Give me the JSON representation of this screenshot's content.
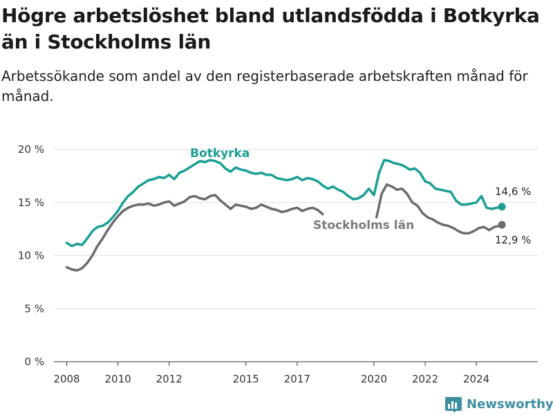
{
  "header": {
    "title": "Högre arbetslöshet bland utlandsfödda i Botkyrka än i Stockholms län",
    "subtitle": "Arbetssökande som andel av den registerbaserade arbetskraften månad för månad."
  },
  "branding": {
    "name": "Newsworthy",
    "icon": "bar-chart-logo-icon",
    "color": "#3d8fa0"
  },
  "chart_data": {
    "type": "line",
    "title": "Högre arbetslöshet bland utlandsfödda i Botkyrka än i Stockholms län",
    "subtitle": "Arbetssökande som andel av den registerbaserade arbetskraften månad för månad.",
    "xlabel": "",
    "ylabel": "",
    "xlim": [
      2007.5,
      2026.4
    ],
    "ylim": [
      0,
      20
    ],
    "y_ticks": [
      0,
      5,
      10,
      15,
      20
    ],
    "y_tick_labels": [
      "0 %",
      "5 %",
      "10 %",
      "15 %",
      "20 %"
    ],
    "x_ticks": [
      2008,
      2010,
      2012,
      2015,
      2017,
      2020,
      2022,
      2024
    ],
    "x_tick_labels": [
      "2008",
      "2010",
      "2012",
      "2015",
      "2017",
      "2020",
      "2022",
      "2024"
    ],
    "grid": "horizontal",
    "legend": "inline labels",
    "series": [
      {
        "name": "Botkyrka",
        "color": "#1a9e93",
        "end_label": "14,6 %",
        "end_value": 14.6,
        "points": [
          [
            2008.0,
            11.2
          ],
          [
            2008.2,
            10.9
          ],
          [
            2008.4,
            11.1
          ],
          [
            2008.6,
            11.0
          ],
          [
            2008.8,
            11.6
          ],
          [
            2009.0,
            12.3
          ],
          [
            2009.2,
            12.7
          ],
          [
            2009.4,
            12.8
          ],
          [
            2009.6,
            13.1
          ],
          [
            2009.8,
            13.6
          ],
          [
            2010.0,
            14.2
          ],
          [
            2010.2,
            15.0
          ],
          [
            2010.4,
            15.6
          ],
          [
            2010.6,
            16.0
          ],
          [
            2010.8,
            16.5
          ],
          [
            2011.0,
            16.8
          ],
          [
            2011.2,
            17.1
          ],
          [
            2011.4,
            17.2
          ],
          [
            2011.6,
            17.4
          ],
          [
            2011.8,
            17.3
          ],
          [
            2012.0,
            17.6
          ],
          [
            2012.2,
            17.2
          ],
          [
            2012.4,
            17.8
          ],
          [
            2012.6,
            18.0
          ],
          [
            2012.8,
            18.3
          ],
          [
            2013.0,
            18.6
          ],
          [
            2013.2,
            18.9
          ],
          [
            2013.4,
            18.8
          ],
          [
            2013.6,
            19.0
          ],
          [
            2013.8,
            18.9
          ],
          [
            2014.0,
            18.7
          ],
          [
            2014.2,
            18.2
          ],
          [
            2014.4,
            17.9
          ],
          [
            2014.6,
            18.3
          ],
          [
            2014.8,
            18.1
          ],
          [
            2015.0,
            18.0
          ],
          [
            2015.2,
            17.8
          ],
          [
            2015.4,
            17.7
          ],
          [
            2015.6,
            17.8
          ],
          [
            2015.8,
            17.6
          ],
          [
            2016.0,
            17.6
          ],
          [
            2016.2,
            17.3
          ],
          [
            2016.4,
            17.2
          ],
          [
            2016.6,
            17.1
          ],
          [
            2016.8,
            17.2
          ],
          [
            2017.0,
            17.4
          ],
          [
            2017.2,
            17.1
          ],
          [
            2017.4,
            17.3
          ],
          [
            2017.6,
            17.2
          ],
          [
            2017.8,
            17.0
          ],
          [
            2018.0,
            16.6
          ],
          [
            2018.2,
            16.3
          ],
          [
            2018.4,
            16.5
          ],
          [
            2018.6,
            16.2
          ],
          [
            2018.8,
            16.0
          ],
          [
            2019.0,
            15.6
          ],
          [
            2019.2,
            15.3
          ],
          [
            2019.4,
            15.4
          ],
          [
            2019.6,
            15.7
          ],
          [
            2019.8,
            16.3
          ],
          [
            2020.0,
            15.7
          ],
          [
            2020.2,
            17.8
          ],
          [
            2020.4,
            19.0
          ],
          [
            2020.6,
            18.9
          ],
          [
            2020.8,
            18.7
          ],
          [
            2021.0,
            18.6
          ],
          [
            2021.2,
            18.4
          ],
          [
            2021.4,
            18.1
          ],
          [
            2021.6,
            18.2
          ],
          [
            2021.8,
            17.8
          ],
          [
            2022.0,
            17.0
          ],
          [
            2022.2,
            16.8
          ],
          [
            2022.4,
            16.3
          ],
          [
            2022.6,
            16.2
          ],
          [
            2022.8,
            16.1
          ],
          [
            2023.0,
            16.0
          ],
          [
            2023.2,
            15.2
          ],
          [
            2023.4,
            14.8
          ],
          [
            2023.6,
            14.8
          ],
          [
            2023.8,
            14.9
          ],
          [
            2024.0,
            15.0
          ],
          [
            2024.2,
            15.6
          ],
          [
            2024.4,
            14.5
          ],
          [
            2024.6,
            14.4
          ],
          [
            2024.8,
            14.5
          ],
          [
            2025.0,
            14.6
          ]
        ]
      },
      {
        "name": "Stockholms län",
        "color": "#6b6b6b",
        "end_label": "12,9 %",
        "end_value": 12.9,
        "points": [
          [
            2008.0,
            8.9
          ],
          [
            2008.2,
            8.7
          ],
          [
            2008.4,
            8.6
          ],
          [
            2008.6,
            8.8
          ],
          [
            2008.8,
            9.3
          ],
          [
            2009.0,
            10.0
          ],
          [
            2009.2,
            10.9
          ],
          [
            2009.4,
            11.6
          ],
          [
            2009.6,
            12.4
          ],
          [
            2009.8,
            13.1
          ],
          [
            2010.0,
            13.7
          ],
          [
            2010.2,
            14.2
          ],
          [
            2010.4,
            14.5
          ],
          [
            2010.6,
            14.7
          ],
          [
            2010.8,
            14.8
          ],
          [
            2011.0,
            14.8
          ],
          [
            2011.2,
            14.9
          ],
          [
            2011.4,
            14.7
          ],
          [
            2011.6,
            14.8
          ],
          [
            2011.8,
            15.0
          ],
          [
            2012.0,
            15.1
          ],
          [
            2012.2,
            14.7
          ],
          [
            2012.4,
            14.9
          ],
          [
            2012.6,
            15.1
          ],
          [
            2012.8,
            15.5
          ],
          [
            2013.0,
            15.6
          ],
          [
            2013.2,
            15.4
          ],
          [
            2013.4,
            15.3
          ],
          [
            2013.6,
            15.6
          ],
          [
            2013.8,
            15.7
          ],
          [
            2014.0,
            15.2
          ],
          [
            2014.2,
            14.8
          ],
          [
            2014.4,
            14.4
          ],
          [
            2014.6,
            14.8
          ],
          [
            2014.8,
            14.7
          ],
          [
            2015.0,
            14.6
          ],
          [
            2015.2,
            14.4
          ],
          [
            2015.4,
            14.5
          ],
          [
            2015.6,
            14.8
          ],
          [
            2015.8,
            14.6
          ],
          [
            2016.0,
            14.4
          ],
          [
            2016.2,
            14.3
          ],
          [
            2016.4,
            14.1
          ],
          [
            2016.6,
            14.2
          ],
          [
            2016.8,
            14.4
          ],
          [
            2017.0,
            14.5
          ],
          [
            2017.2,
            14.2
          ],
          [
            2017.4,
            14.4
          ],
          [
            2017.6,
            14.5
          ],
          [
            2017.8,
            14.3
          ],
          [
            2018.0,
            13.9
          ],
          null,
          [
            2020.1,
            13.6
          ],
          [
            2020.3,
            15.8
          ],
          [
            2020.5,
            16.7
          ],
          [
            2020.7,
            16.5
          ],
          [
            2020.9,
            16.2
          ],
          [
            2021.1,
            16.3
          ],
          [
            2021.3,
            15.8
          ],
          [
            2021.5,
            15.0
          ],
          [
            2021.7,
            14.7
          ],
          [
            2021.9,
            14.0
          ],
          [
            2022.1,
            13.6
          ],
          [
            2022.3,
            13.4
          ],
          [
            2022.5,
            13.1
          ],
          [
            2022.7,
            12.9
          ],
          [
            2022.9,
            12.8
          ],
          [
            2023.1,
            12.6
          ],
          [
            2023.3,
            12.3
          ],
          [
            2023.5,
            12.1
          ],
          [
            2023.7,
            12.1
          ],
          [
            2023.9,
            12.3
          ],
          [
            2024.1,
            12.6
          ],
          [
            2024.3,
            12.7
          ],
          [
            2024.5,
            12.4
          ],
          [
            2024.7,
            12.7
          ],
          [
            2024.9,
            12.8
          ],
          [
            2025.0,
            12.9
          ]
        ]
      }
    ]
  }
}
